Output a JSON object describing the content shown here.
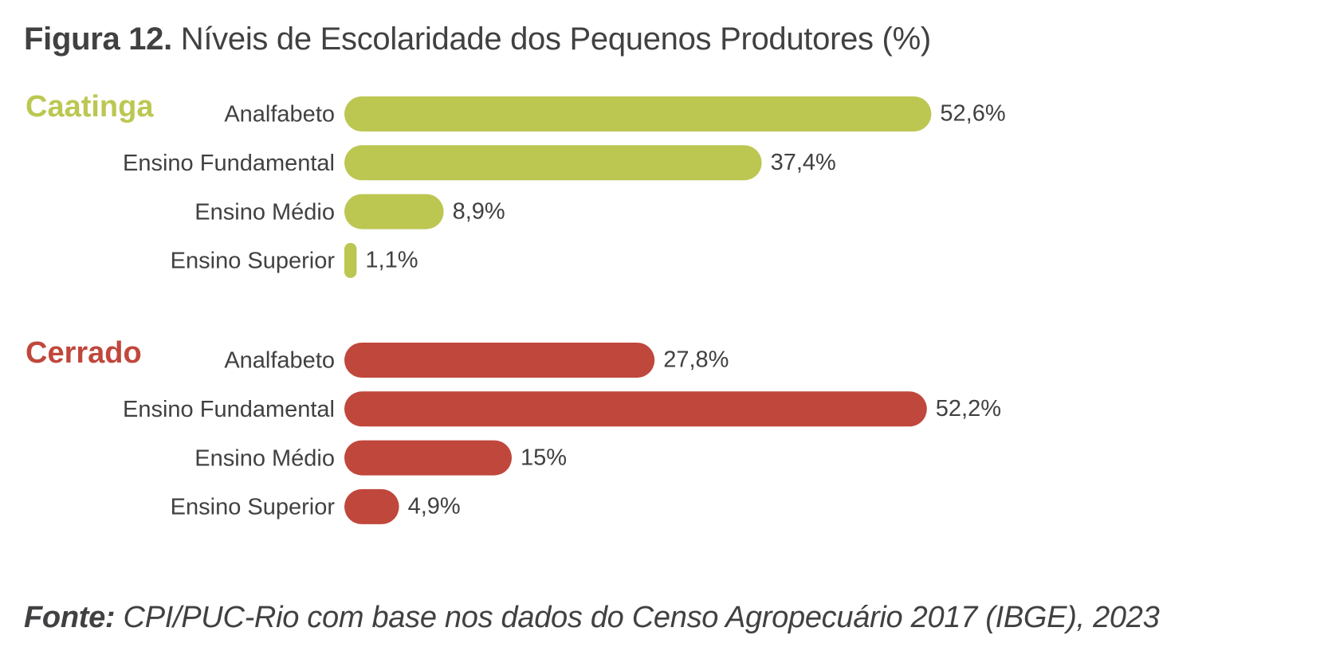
{
  "figure": {
    "number": "Figura 12.",
    "title": "Níveis de Escolaridade dos Pequenos Produtores (%)"
  },
  "source": {
    "label": "Fonte:",
    "text": "CPI/PUC-Rio com base nos dados do Censo Agropecuário 2017 (IBGE), 2023"
  },
  "colors": {
    "caatinga": "#bcc752",
    "cerrado": "#c0473c",
    "text": "#414042"
  },
  "chart_data": {
    "type": "bar",
    "orientation": "horizontal",
    "title": "Níveis de Escolaridade dos Pequenos Produtores (%)",
    "categories": [
      "Analfabeto",
      "Ensino Fundamental",
      "Ensino Médio",
      "Ensino Superior"
    ],
    "series": [
      {
        "name": "Caatinga",
        "color": "#bcc752",
        "values": [
          52.6,
          37.4,
          8.9,
          1.1
        ],
        "value_labels": [
          "52,6%",
          "37,4%",
          "8,9%",
          "1,1%"
        ]
      },
      {
        "name": "Cerrado",
        "color": "#c0473c",
        "values": [
          27.8,
          52.2,
          15,
          4.9
        ],
        "value_labels": [
          "27,8%",
          "52,2%",
          "15%",
          "4,9%"
        ]
      }
    ],
    "xlim": [
      0,
      60
    ],
    "grid": false,
    "xaxis_visible": false
  }
}
